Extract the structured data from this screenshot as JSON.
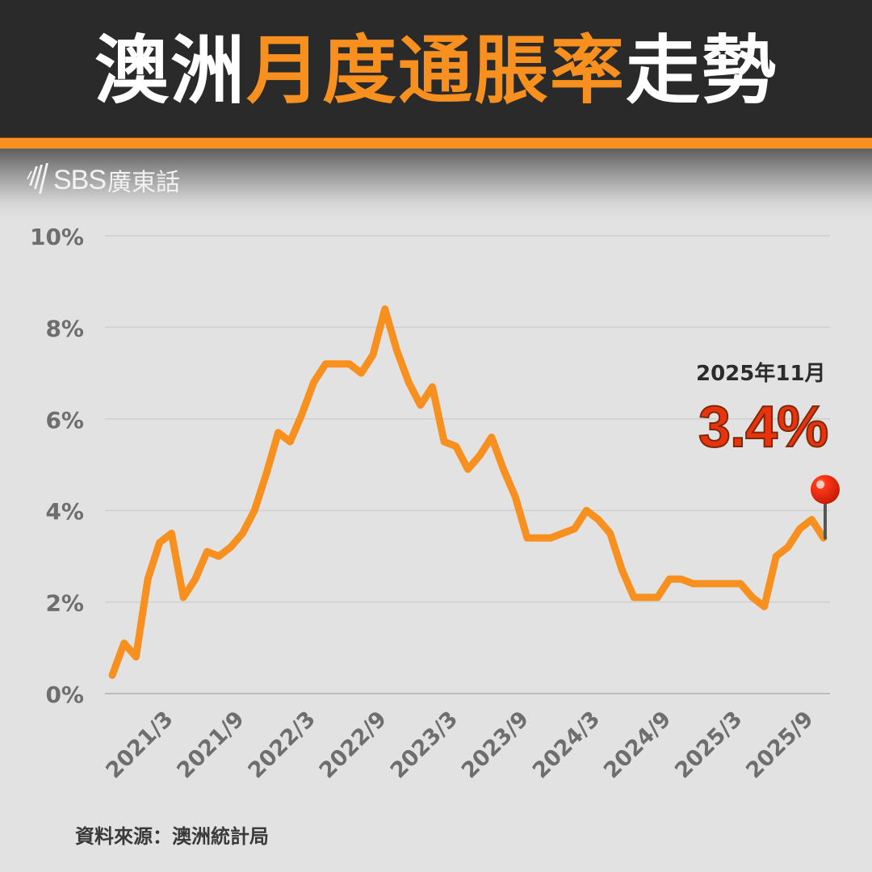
{
  "header": {
    "title_parts": [
      {
        "text": "澳洲",
        "color": "white"
      },
      {
        "text": "月度通脹率",
        "color": "orange"
      },
      {
        "text": "走勢",
        "color": "white"
      }
    ]
  },
  "brand": {
    "logo_text": "SBS",
    "logo_suffix": "廣東話"
  },
  "annotation": {
    "date": "2025年11月",
    "value": "3.4%"
  },
  "source": "資料來源：澳洲統計局",
  "colors": {
    "header_bg": "#2a2a2a",
    "accent": "#f7901e",
    "line": "#f7901e",
    "highlight": "#e8330d",
    "axis_text": "#6e6e6e",
    "grid": "#cfcfcf",
    "bg": "#e2e2e2"
  },
  "chart_data": {
    "type": "line",
    "title": "澳洲月度通脹率走勢",
    "xlabel": "",
    "ylabel": "",
    "ylim": [
      0,
      10
    ],
    "yticks": [
      "0%",
      "2%",
      "4%",
      "6%",
      "8%",
      "10%"
    ],
    "xtick_labels": [
      "2021/3",
      "2021/9",
      "2022/3",
      "2022/9",
      "2023/3",
      "2023/9",
      "2024/3",
      "2024/9",
      "2025/3",
      "2025/9"
    ],
    "grid": true,
    "legend": "none",
    "start": "2020/11",
    "end": "2025/11",
    "series": [
      {
        "name": "月度通脹率 (%)",
        "values": [
          0.4,
          1.1,
          0.8,
          2.5,
          3.3,
          3.5,
          2.1,
          2.5,
          3.1,
          3.0,
          3.2,
          3.5,
          4.0,
          4.8,
          5.7,
          5.5,
          6.1,
          6.8,
          7.2,
          7.2,
          7.2,
          7.0,
          7.4,
          8.4,
          7.5,
          6.8,
          6.3,
          6.7,
          5.5,
          5.4,
          4.9,
          5.2,
          5.6,
          4.9,
          4.3,
          3.4,
          3.4,
          3.4,
          3.5,
          3.6,
          4.0,
          3.8,
          3.5,
          2.7,
          2.1,
          2.1,
          2.1,
          2.5,
          2.5,
          2.4,
          2.4,
          2.4,
          2.4,
          2.4,
          2.1,
          1.9,
          3.0,
          3.2,
          3.6,
          3.8,
          3.4
        ]
      }
    ],
    "xtick_indices": [
      4,
      10,
      16,
      22,
      28,
      34,
      40,
      46,
      52,
      58
    ],
    "annotations": [
      {
        "index": 60,
        "label": "2025年11月",
        "value": "3.4%",
        "marker": "red-pushpin"
      }
    ]
  }
}
